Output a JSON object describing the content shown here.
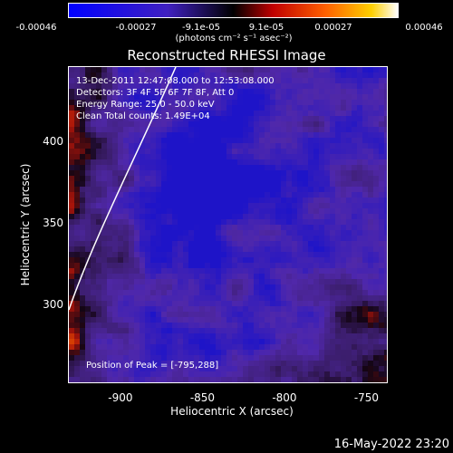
{
  "colorbar": {
    "tick_labels": [
      "-0.00046",
      "-0.00027",
      "-9.1e-05",
      "9.1e-05",
      "0.00027",
      "0.00046"
    ],
    "units_label": "(photons cm⁻² s⁻¹ asec⁻²)"
  },
  "title": "Reconstructed RHESSI Image",
  "info": {
    "time": "13-Dec-2011 12:47:08.000 to 12:53:08.000",
    "detectors": "Detectors: 3F 4F 5F 6F 7F 8F, Att 0",
    "energy": "Energy Range: 25.0 - 50.0 keV",
    "clean": "Clean    Total counts: 1.49E+04"
  },
  "peak": "Position of Peak = [-795,288]",
  "axes": {
    "xlabel": "Heliocentric X (arcsec)",
    "ylabel": "Heliocentric Y (arcsec)",
    "xticks": [
      "-900",
      "-850",
      "-800",
      "-750"
    ],
    "xtick_values": [
      -900,
      -850,
      -800,
      -750
    ],
    "yticks": [
      "400",
      "350",
      "300"
    ],
    "ytick_values": [
      400,
      350,
      300
    ],
    "xlim": [
      -932,
      -737
    ],
    "ylim": [
      252,
      447
    ]
  },
  "footer": "16-May-2022 23:20",
  "colors": {
    "background": "#000000",
    "limb_line": "#ffffff"
  }
}
